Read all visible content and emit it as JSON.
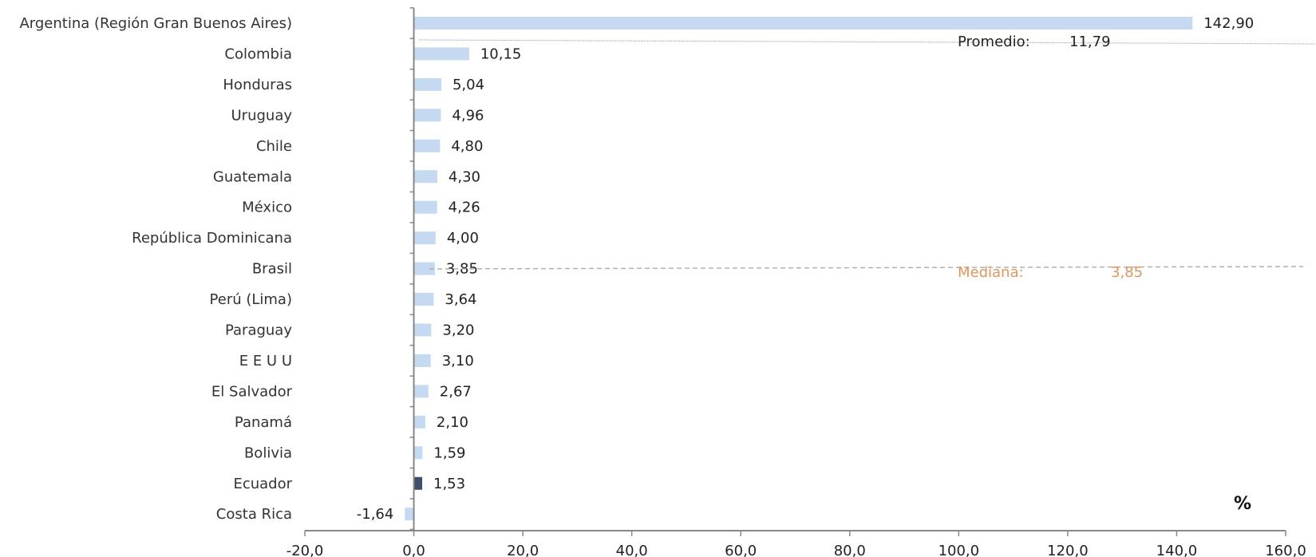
{
  "chart_data": {
    "type": "bar",
    "orientation": "horizontal",
    "categories": [
      "Argentina (Región Gran Buenos Aires)",
      "Colombia",
      "Honduras",
      "Uruguay",
      "Chile",
      "Guatemala",
      "México",
      "República Dominicana",
      "Brasil",
      "Perú (Lima)",
      "Paraguay",
      "E E U U",
      "El Salvador",
      "Panamá",
      "Bolivia",
      "Ecuador",
      "Costa Rica"
    ],
    "values": [
      142.9,
      10.15,
      5.04,
      4.96,
      4.8,
      4.3,
      4.26,
      4.0,
      3.85,
      3.64,
      3.2,
      3.1,
      2.67,
      2.1,
      1.59,
      1.53,
      -1.64
    ],
    "value_labels": [
      "142,90",
      "10,15",
      "5,04",
      "4,96",
      "4,80",
      "4,30",
      "4,26",
      "4,00",
      "3,85",
      "3,64",
      "3,20",
      "3,10",
      "2,67",
      "2,10",
      "1,59",
      "1,53",
      "-1,64"
    ],
    "highlight_category": "Ecuador",
    "bar_color": "#c5d9f1",
    "highlight_color": "#3c4f6b",
    "xlim": [
      -20,
      160
    ],
    "x_ticks": [
      -20,
      0,
      20,
      40,
      60,
      80,
      100,
      120,
      140,
      160
    ],
    "x_tick_labels": [
      "-20,0",
      "0,0",
      "20,0",
      "40,0",
      "60,0",
      "80,0",
      "100,0",
      "120,0",
      "140,0",
      "160,0"
    ],
    "unit_label": "%",
    "reference_lines": [
      {
        "label": "Promedio:",
        "value": 11.79,
        "value_label": "11,79",
        "color": "#222222",
        "style": "dotted"
      },
      {
        "label": "Mediana:",
        "value": 3.85,
        "value_label": "3,85",
        "color": "#e3955a",
        "style": "dashed"
      }
    ],
    "grid": false
  }
}
